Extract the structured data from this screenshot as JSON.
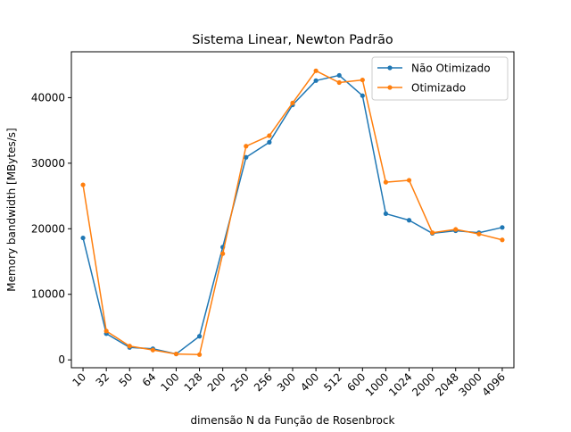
{
  "chart_data": {
    "type": "line",
    "title": "Sistema Linear, Newton Padrão",
    "xlabel": "dimensão N da Função de Rosenbrock",
    "ylabel": "Memory bandwidth [MBytes/s]",
    "categories": [
      "10",
      "32",
      "50",
      "64",
      "100",
      "128",
      "200",
      "250",
      "256",
      "300",
      "400",
      "512",
      "600",
      "1000",
      "1024",
      "2000",
      "2048",
      "3000",
      "4096"
    ],
    "ylim": [
      -1200,
      47000
    ],
    "yticks": [
      0,
      10000,
      20000,
      30000,
      40000
    ],
    "grid": false,
    "legend_position": "upper right",
    "series": [
      {
        "name": "Não Otimizado",
        "color": "#1f77b4",
        "values": [
          18600,
          4000,
          1900,
          1700,
          900,
          3600,
          17200,
          30900,
          33200,
          38900,
          42600,
          43400,
          40300,
          22300,
          21300,
          19300,
          19700,
          19400,
          20200
        ]
      },
      {
        "name": "Otimizado",
        "color": "#ff7f0e",
        "values": [
          26700,
          4400,
          2100,
          1500,
          900,
          800,
          16200,
          32600,
          34200,
          39200,
          44100,
          42300,
          42700,
          27100,
          27400,
          19400,
          19900,
          19200,
          18300
        ]
      }
    ]
  }
}
